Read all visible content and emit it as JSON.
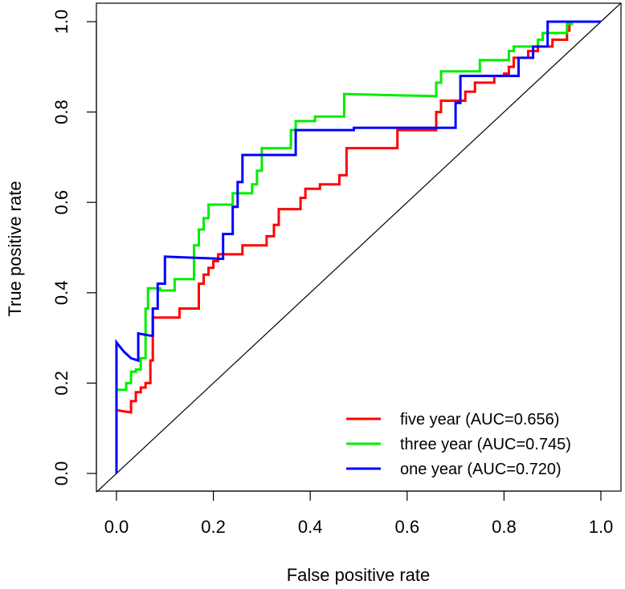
{
  "chart_data": {
    "type": "line",
    "title": "",
    "xlabel": "False positive rate",
    "ylabel": "True positive rate",
    "xlim": [
      0,
      1
    ],
    "ylim": [
      0,
      1
    ],
    "x_ticks": [
      "0.0",
      "0.2",
      "0.4",
      "0.6",
      "0.8",
      "1.0"
    ],
    "y_ticks": [
      "0.0",
      "0.2",
      "0.4",
      "0.6",
      "0.8",
      "1.0"
    ],
    "grid": false,
    "legend_position": "bottom-right",
    "reference_line": [
      [
        0,
        0
      ],
      [
        1,
        1
      ]
    ],
    "series": [
      {
        "name": "five year (AUC=0.656)",
        "color": "#ff0000",
        "points": [
          [
            0,
            0.14
          ],
          [
            0.03,
            0.135
          ],
          [
            0.03,
            0.16
          ],
          [
            0.04,
            0.16
          ],
          [
            0.04,
            0.18
          ],
          [
            0.05,
            0.18
          ],
          [
            0.05,
            0.19
          ],
          [
            0.06,
            0.19
          ],
          [
            0.06,
            0.2
          ],
          [
            0.07,
            0.2
          ],
          [
            0.07,
            0.25
          ],
          [
            0.075,
            0.25
          ],
          [
            0.075,
            0.345
          ],
          [
            0.13,
            0.345
          ],
          [
            0.13,
            0.365
          ],
          [
            0.17,
            0.365
          ],
          [
            0.17,
            0.42
          ],
          [
            0.18,
            0.42
          ],
          [
            0.18,
            0.44
          ],
          [
            0.19,
            0.44
          ],
          [
            0.19,
            0.455
          ],
          [
            0.2,
            0.455
          ],
          [
            0.2,
            0.47
          ],
          [
            0.21,
            0.47
          ],
          [
            0.21,
            0.485
          ],
          [
            0.26,
            0.485
          ],
          [
            0.26,
            0.505
          ],
          [
            0.31,
            0.505
          ],
          [
            0.31,
            0.525
          ],
          [
            0.325,
            0.525
          ],
          [
            0.325,
            0.55
          ],
          [
            0.335,
            0.55
          ],
          [
            0.335,
            0.585
          ],
          [
            0.38,
            0.585
          ],
          [
            0.38,
            0.61
          ],
          [
            0.39,
            0.61
          ],
          [
            0.39,
            0.63
          ],
          [
            0.42,
            0.63
          ],
          [
            0.42,
            0.64
          ],
          [
            0.46,
            0.64
          ],
          [
            0.46,
            0.66
          ],
          [
            0.475,
            0.66
          ],
          [
            0.475,
            0.72
          ],
          [
            0.58,
            0.72
          ],
          [
            0.58,
            0.76
          ],
          [
            0.66,
            0.76
          ],
          [
            0.66,
            0.8
          ],
          [
            0.67,
            0.8
          ],
          [
            0.67,
            0.825
          ],
          [
            0.72,
            0.825
          ],
          [
            0.72,
            0.845
          ],
          [
            0.74,
            0.845
          ],
          [
            0.74,
            0.865
          ],
          [
            0.78,
            0.865
          ],
          [
            0.78,
            0.88
          ],
          [
            0.8,
            0.88
          ],
          [
            0.8,
            0.885
          ],
          [
            0.81,
            0.885
          ],
          [
            0.81,
            0.9
          ],
          [
            0.82,
            0.9
          ],
          [
            0.82,
            0.92
          ],
          [
            0.85,
            0.92
          ],
          [
            0.85,
            0.935
          ],
          [
            0.87,
            0.935
          ],
          [
            0.87,
            0.945
          ],
          [
            0.9,
            0.945
          ],
          [
            0.9,
            0.96
          ],
          [
            0.93,
            0.96
          ],
          [
            0.93,
            0.98
          ],
          [
            0.935,
            0.98
          ],
          [
            0.935,
            1.0
          ],
          [
            1,
            1
          ]
        ]
      },
      {
        "name": "three year (AUC=0.745)",
        "color": "#00ee00",
        "points": [
          [
            0,
            0.185
          ],
          [
            0.02,
            0.185
          ],
          [
            0.02,
            0.2
          ],
          [
            0.03,
            0.2
          ],
          [
            0.03,
            0.225
          ],
          [
            0.04,
            0.225
          ],
          [
            0.04,
            0.23
          ],
          [
            0.05,
            0.23
          ],
          [
            0.05,
            0.255
          ],
          [
            0.06,
            0.255
          ],
          [
            0.06,
            0.365
          ],
          [
            0.065,
            0.365
          ],
          [
            0.065,
            0.41
          ],
          [
            0.09,
            0.41
          ],
          [
            0.09,
            0.405
          ],
          [
            0.12,
            0.405
          ],
          [
            0.12,
            0.43
          ],
          [
            0.16,
            0.43
          ],
          [
            0.16,
            0.505
          ],
          [
            0.17,
            0.505
          ],
          [
            0.17,
            0.54
          ],
          [
            0.18,
            0.54
          ],
          [
            0.18,
            0.565
          ],
          [
            0.19,
            0.565
          ],
          [
            0.19,
            0.595
          ],
          [
            0.24,
            0.595
          ],
          [
            0.24,
            0.62
          ],
          [
            0.28,
            0.62
          ],
          [
            0.28,
            0.64
          ],
          [
            0.29,
            0.64
          ],
          [
            0.29,
            0.67
          ],
          [
            0.3,
            0.67
          ],
          [
            0.3,
            0.72
          ],
          [
            0.36,
            0.72
          ],
          [
            0.36,
            0.76
          ],
          [
            0.37,
            0.76
          ],
          [
            0.37,
            0.78
          ],
          [
            0.41,
            0.78
          ],
          [
            0.41,
            0.79
          ],
          [
            0.47,
            0.79
          ],
          [
            0.47,
            0.84
          ],
          [
            0.66,
            0.835
          ],
          [
            0.66,
            0.865
          ],
          [
            0.67,
            0.865
          ],
          [
            0.67,
            0.89
          ],
          [
            0.75,
            0.89
          ],
          [
            0.75,
            0.915
          ],
          [
            0.81,
            0.915
          ],
          [
            0.81,
            0.935
          ],
          [
            0.82,
            0.935
          ],
          [
            0.82,
            0.945
          ],
          [
            0.87,
            0.945
          ],
          [
            0.87,
            0.96
          ],
          [
            0.88,
            0.96
          ],
          [
            0.88,
            0.975
          ],
          [
            0.93,
            0.975
          ],
          [
            0.93,
            0.995
          ],
          [
            0.94,
            0.995
          ],
          [
            0.94,
            1.0
          ],
          [
            1,
            1
          ]
        ]
      },
      {
        "name": "one year (AUC=0.720)",
        "color": "#0000ff",
        "points": [
          [
            0,
            0
          ],
          [
            0,
            0.29
          ],
          [
            0.015,
            0.27
          ],
          [
            0.03,
            0.255
          ],
          [
            0.045,
            0.25
          ],
          [
            0.045,
            0.31
          ],
          [
            0.07,
            0.305
          ],
          [
            0.075,
            0.305
          ],
          [
            0.075,
            0.365
          ],
          [
            0.085,
            0.365
          ],
          [
            0.085,
            0.42
          ],
          [
            0.1,
            0.42
          ],
          [
            0.1,
            0.48
          ],
          [
            0.22,
            0.475
          ],
          [
            0.22,
            0.53
          ],
          [
            0.24,
            0.53
          ],
          [
            0.24,
            0.59
          ],
          [
            0.25,
            0.59
          ],
          [
            0.25,
            0.645
          ],
          [
            0.26,
            0.645
          ],
          [
            0.26,
            0.705
          ],
          [
            0.37,
            0.705
          ],
          [
            0.37,
            0.76
          ],
          [
            0.49,
            0.76
          ],
          [
            0.49,
            0.765
          ],
          [
            0.7,
            0.765
          ],
          [
            0.7,
            0.82
          ],
          [
            0.71,
            0.82
          ],
          [
            0.71,
            0.88
          ],
          [
            0.83,
            0.88
          ],
          [
            0.83,
            0.92
          ],
          [
            0.86,
            0.92
          ],
          [
            0.86,
            0.945
          ],
          [
            0.89,
            0.945
          ],
          [
            0.89,
            1.0
          ],
          [
            1,
            1
          ]
        ]
      }
    ]
  }
}
